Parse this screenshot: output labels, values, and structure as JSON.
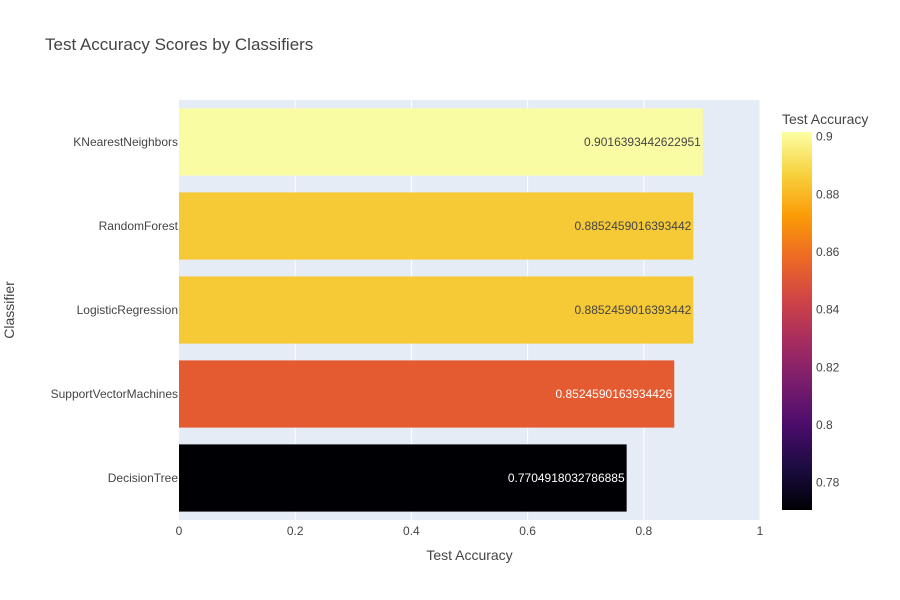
{
  "chart_data": {
    "type": "bar",
    "orientation": "horizontal",
    "title": "Test Accuracy Scores by Classifiers",
    "xlabel": "Test Accuracy",
    "ylabel": "Classifier",
    "xlim": [
      0,
      1
    ],
    "x_ticks": [
      "0",
      "0.2",
      "0.4",
      "0.6",
      "0.8",
      "1"
    ],
    "categories": [
      "KNearestNeighbors",
      "RandomForest",
      "LogisticRegression",
      "SupportVectorMachines",
      "DecisionTree"
    ],
    "values": [
      0.9016393442622951,
      0.8852459016393442,
      0.8852459016393442,
      0.8524590163934426,
      0.7704918032786885
    ],
    "data_labels": [
      "0.9016393442622951",
      "0.8852459016393442",
      "0.8852459016393442",
      "0.8524590163934426",
      "0.7704918032786885"
    ],
    "bar_colors": [
      "#fafca4",
      "#f6c937",
      "#f6c937",
      "#e45a31",
      "#000004"
    ],
    "label_colors": [
      "#444444",
      "#444444",
      "#444444",
      "#ffffff",
      "#ffffff"
    ],
    "colorscale": "inferno",
    "colorbar": {
      "title": "Test Accuracy",
      "range": [
        0.7704918032786885,
        0.9016393442622951
      ],
      "ticks": [
        "0.78",
        "0.8",
        "0.82",
        "0.84",
        "0.86",
        "0.88",
        "0.9"
      ]
    },
    "plot_background": "#e5ecf6",
    "gridlines": true,
    "legend": "none"
  }
}
